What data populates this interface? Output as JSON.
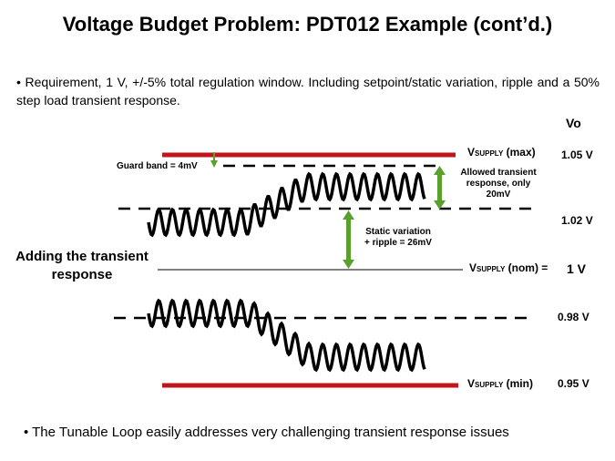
{
  "title": "Voltage Budget Problem: PDT012 Example (cont’d.)",
  "bullets": [
    "• Requirement, 1 V, +/-5% total regulation window. Including setpoint/static variation, ripple and a 50% step load transient response.",
    "• The Tunable Loop easily addresses very challenging transient response issues"
  ],
  "vo_header": "Vo",
  "section_label": {
    "line1": "Adding the transient",
    "line2": "response"
  },
  "levels": [
    {
      "value_label": "1.05 V",
      "line_name_main": "V",
      "line_name_sub": "SUPPLY",
      "line_name_suffix": " (max)"
    },
    {
      "value_label": "1.02 V"
    },
    {
      "value_label": "1 V",
      "line_name_main": "V",
      "line_name_sub": "SUPPLY",
      "line_name_suffix": " (nom) ="
    },
    {
      "value_label": "0.98 V"
    },
    {
      "value_label": "0.95 V",
      "line_name_main": "V",
      "line_name_sub": "SUPPLY",
      "line_name_suffix": " (min)"
    }
  ],
  "annotations": {
    "guard_band": "Guard band = 4mV",
    "allowed_transient": [
      "Allowed transient",
      "response, only",
      "20mV"
    ],
    "static_variation": [
      "Static variation",
      "+ ripple = 26mV"
    ]
  },
  "colors": {
    "supply_line": "#c0151b",
    "arrow": "#5aa02c",
    "text": "#000000"
  }
}
